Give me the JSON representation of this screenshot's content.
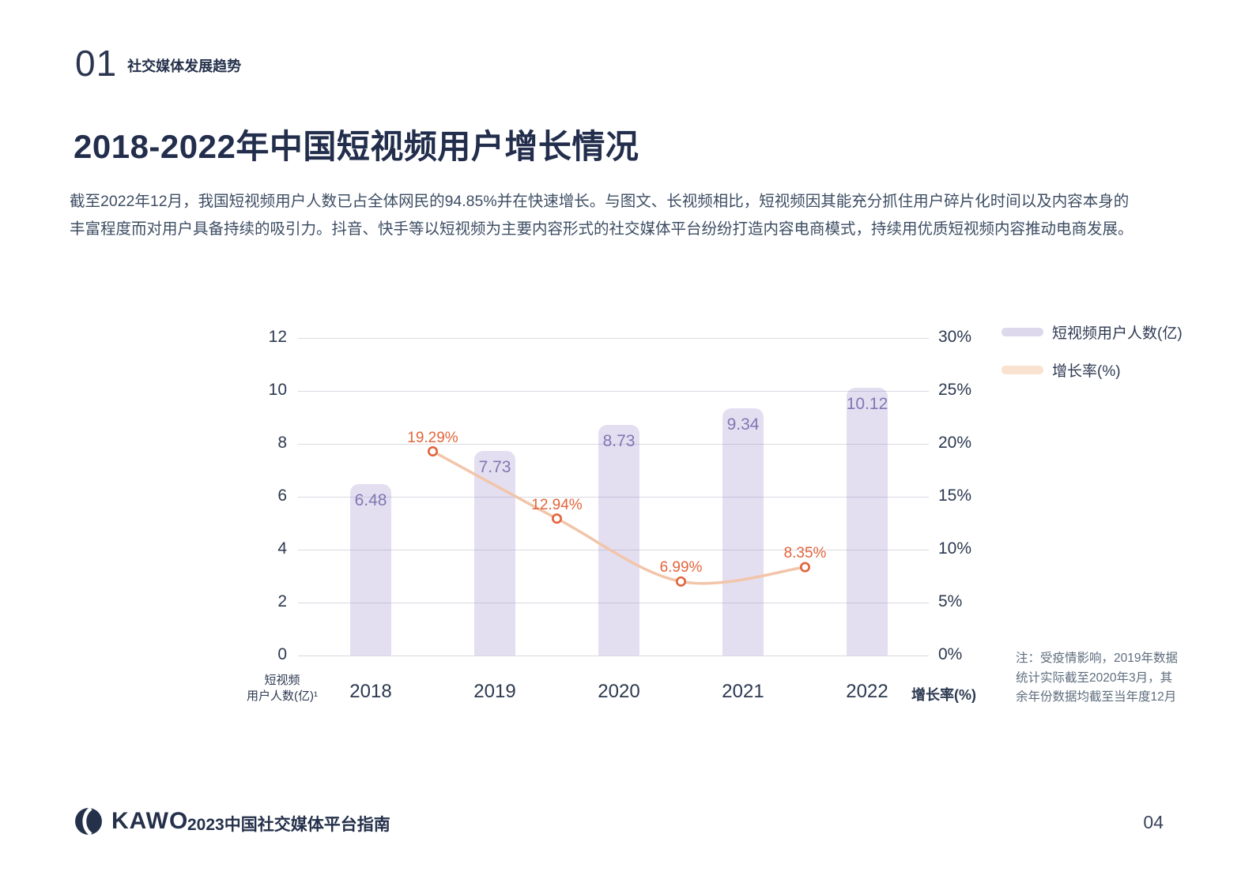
{
  "header": {
    "section_number": "01",
    "section_title": "社交媒体发展趋势",
    "title": "2018-2022年中国短视频用户增长情况",
    "paragraph": "截至2022年12月，我国短视频用户人数已占全体网民的94.85%并在快速增长。与图文、长视频相比，短视频因其能充分抓住用户碎片化时间以及内容本身的\n丰富程度而对用户具备持续的吸引力。抖音、快手等以短视频为主要内容形式的社交媒体平台纷纷打造内容电商模式，持续用优质短视频内容推动电商发展。"
  },
  "chart_data": {
    "type": "bar",
    "subtype": "bar + line combo with dual y-axes",
    "categories": [
      "2018",
      "2019",
      "2020",
      "2021",
      "2022"
    ],
    "series": [
      {
        "name": "短视频用户人数(亿)",
        "type": "bar",
        "axis": "left",
        "values": [
          6.48,
          7.73,
          8.73,
          9.34,
          10.12
        ],
        "value_labels": [
          "6.48",
          "7.73",
          "8.73",
          "9.34",
          "10.12"
        ],
        "color": "#E3DEF0",
        "label_color": "#8177B2"
      },
      {
        "name": "增长率(%)",
        "type": "line",
        "axis": "right",
        "values": [
          19.29,
          12.94,
          6.99,
          8.35
        ],
        "value_labels": [
          "19.29%",
          "12.94%",
          "6.99%",
          "8.35%"
        ],
        "x_placement": "midpoint between consecutive year bars",
        "color": "#F2C5AA",
        "marker_color": "#E0643C",
        "label_color": "#E2653C"
      }
    ],
    "left_axis": {
      "caption": "短视频\n用户人数(亿)¹",
      "min": 0,
      "max": 12,
      "ticks": [
        "12",
        "10",
        "8",
        "6",
        "4",
        "2",
        "0"
      ]
    },
    "right_axis": {
      "caption": "增长率(%)",
      "min": 0,
      "max": 30,
      "ticks": [
        "30%",
        "25%",
        "20%",
        "15%",
        "10%",
        "5%",
        "0%"
      ]
    },
    "legend": {
      "position": "top-right",
      "entries": [
        {
          "label": "短视频用户人数(亿)",
          "swatch_color": "#DDD8EC"
        },
        {
          "label": "增长率(%)",
          "swatch_color": "#F9E2D0"
        }
      ]
    },
    "grid": "horizontal light-gray lines",
    "note": "注：受疫情影响，2019年数据\n统计实际截至2020年3月，其\n余年份数据均截至当年度12月"
  },
  "footer": {
    "brand": "KAWO",
    "caption": "2023中国社交媒体平台指南",
    "page_number": "04"
  }
}
